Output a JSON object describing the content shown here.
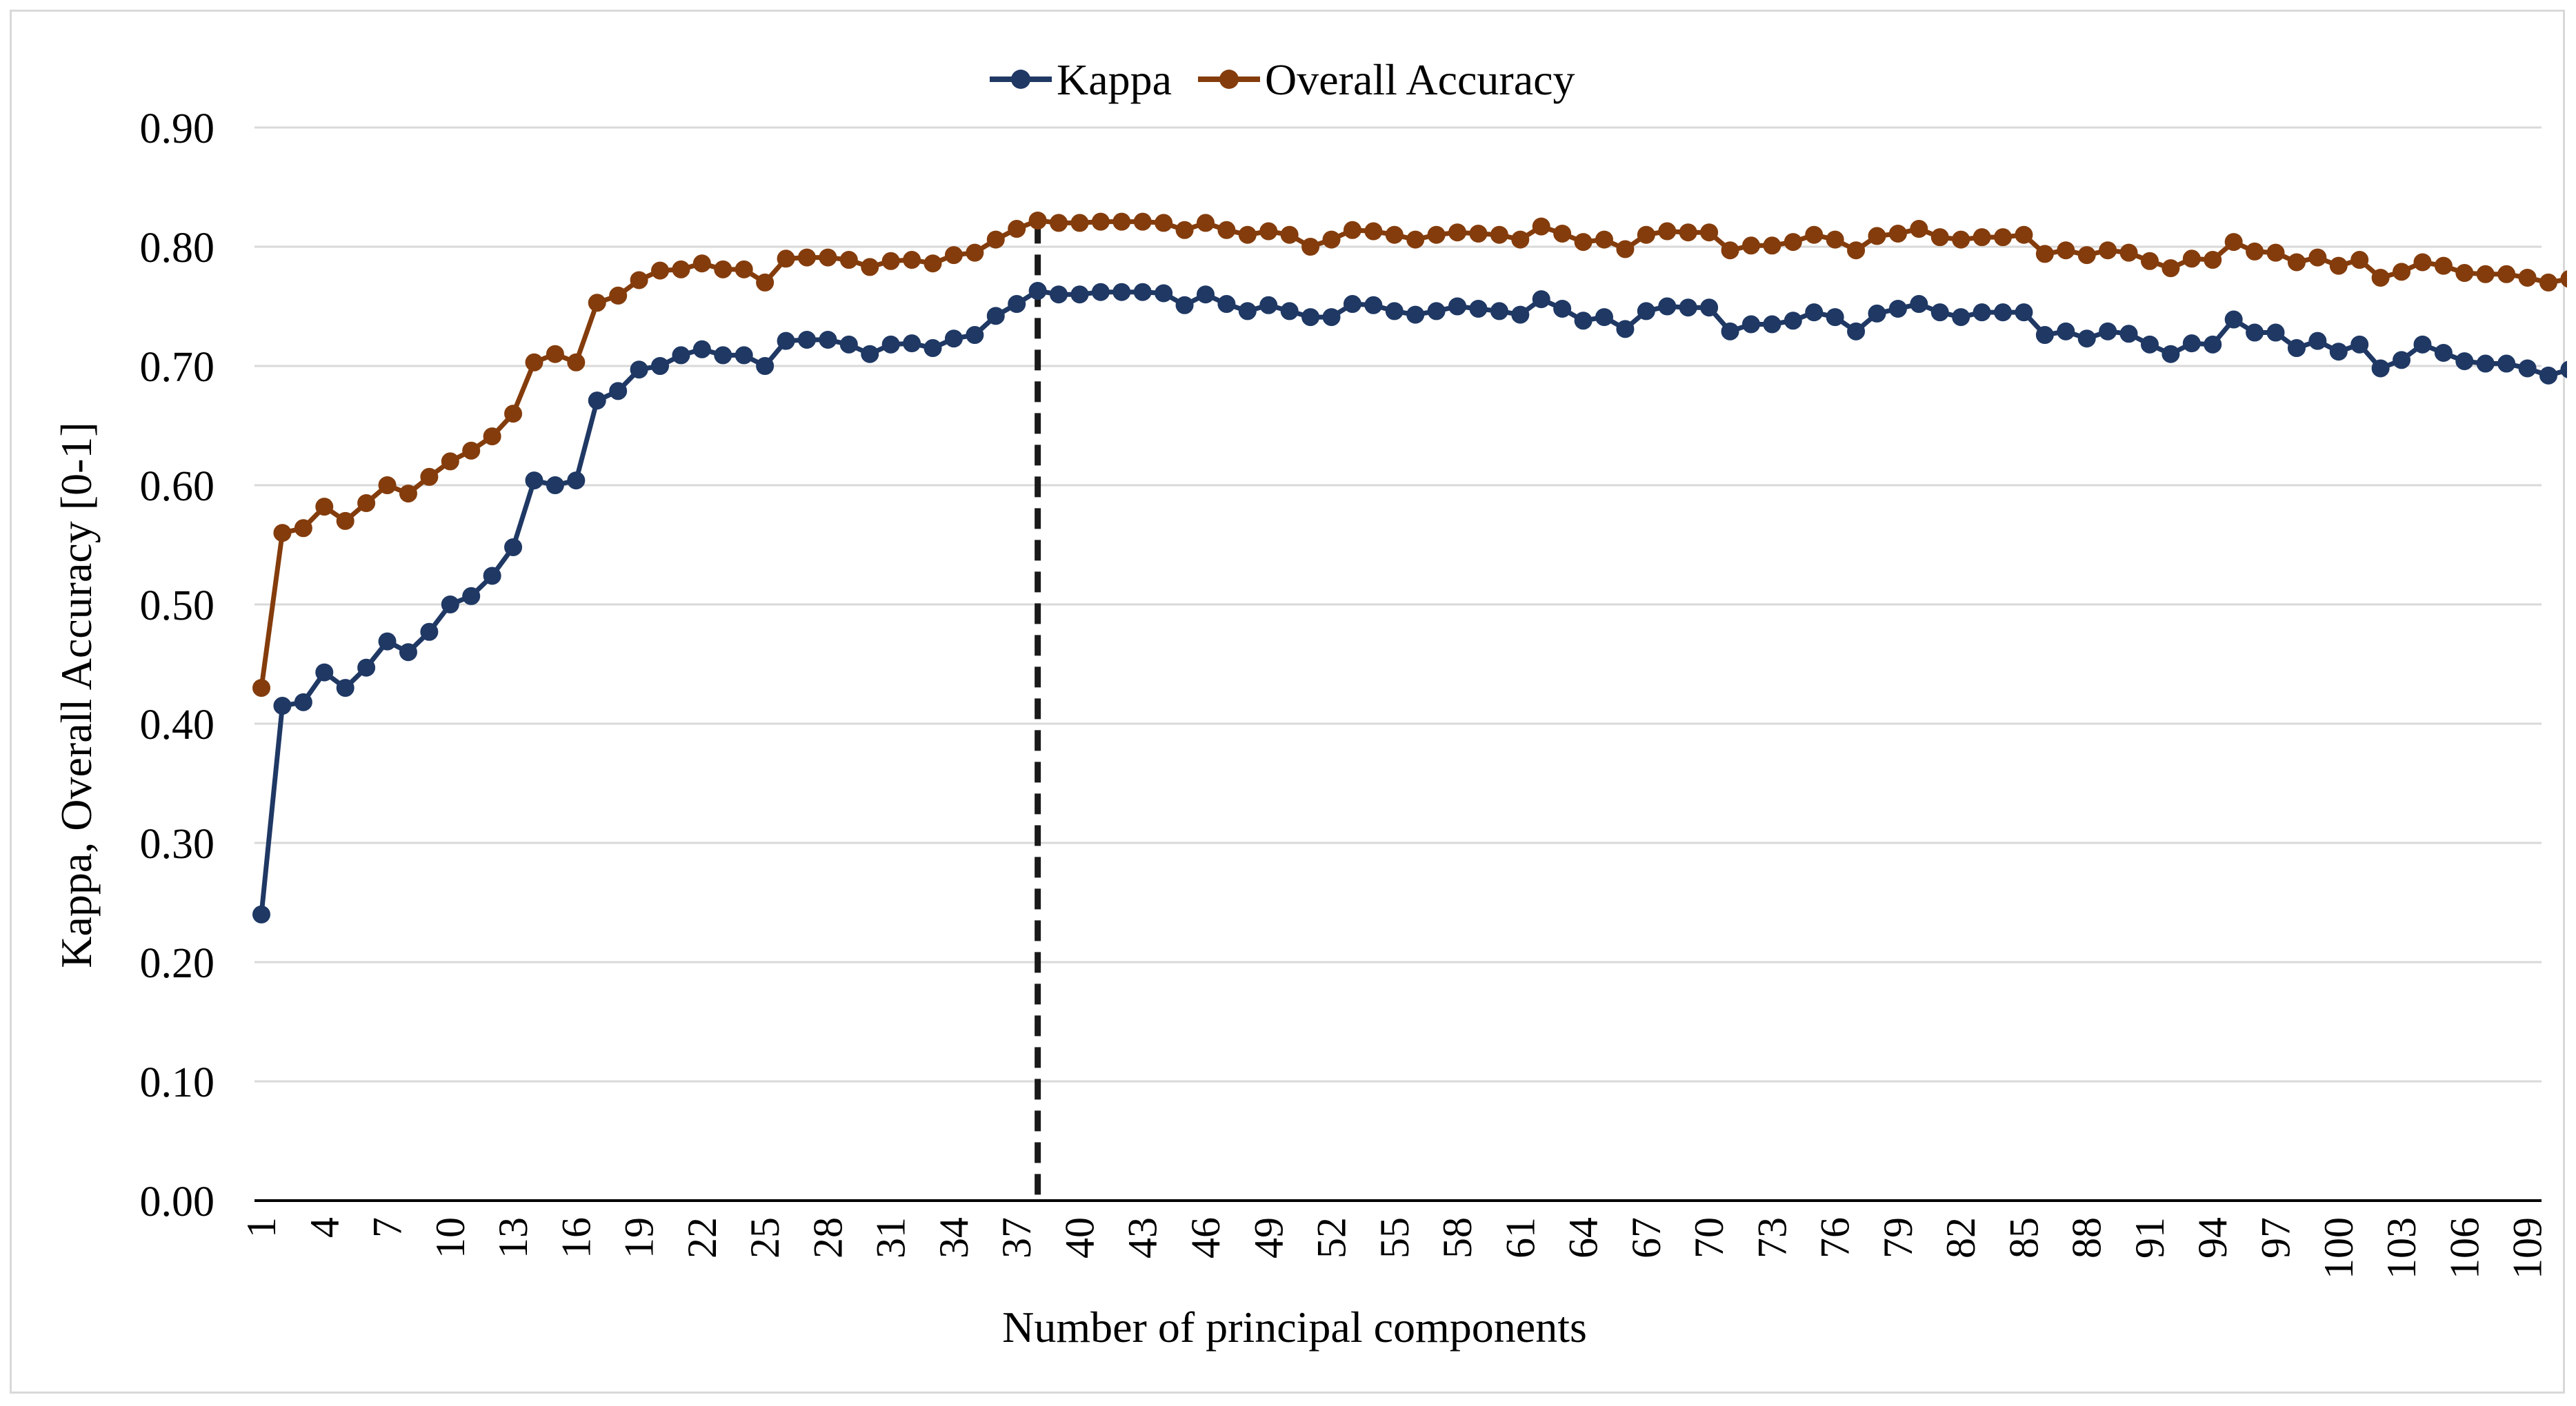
{
  "chart_data": {
    "type": "line",
    "title": "",
    "xlabel": "Number of principal components",
    "ylabel": "Kappa, Overall Accuracy [0-1]",
    "ylim": [
      0,
      0.9
    ],
    "yticks": [
      "0.00",
      "0.10",
      "0.20",
      "0.30",
      "0.40",
      "0.50",
      "0.60",
      "0.70",
      "0.80",
      "0.90"
    ],
    "x_start": 1,
    "x_end": 110,
    "xticks": [
      "1",
      "4",
      "7",
      "10",
      "13",
      "16",
      "19",
      "22",
      "25",
      "28",
      "31",
      "34",
      "37",
      "40",
      "43",
      "46",
      "49",
      "52",
      "55",
      "58",
      "61",
      "64",
      "67",
      "70",
      "73",
      "76",
      "79",
      "82",
      "85",
      "88",
      "91",
      "94",
      "97",
      "100",
      "103",
      "106",
      "109"
    ],
    "legend_position": "top-center",
    "grid": true,
    "reference_line": {
      "x": 38,
      "style": "dashed",
      "color": "#1a1a1a"
    },
    "series": [
      {
        "name": "Kappa",
        "color": "#1f3864",
        "values": [
          0.24,
          0.415,
          0.418,
          0.443,
          0.43,
          0.447,
          0.469,
          0.46,
          0.477,
          0.5,
          0.507,
          0.524,
          0.548,
          0.604,
          0.6,
          0.604,
          0.671,
          0.679,
          0.697,
          0.7,
          0.709,
          0.714,
          0.709,
          0.709,
          0.7,
          0.721,
          0.722,
          0.722,
          0.718,
          0.71,
          0.718,
          0.719,
          0.715,
          0.723,
          0.726,
          0.742,
          0.752,
          0.763,
          0.76,
          0.76,
          0.762,
          0.762,
          0.762,
          0.761,
          0.751,
          0.76,
          0.752,
          0.746,
          0.751,
          0.746,
          0.741,
          0.741,
          0.752,
          0.751,
          0.746,
          0.743,
          0.746,
          0.75,
          0.748,
          0.746,
          0.743,
          0.756,
          0.748,
          0.738,
          0.741,
          0.731,
          0.746,
          0.75,
          0.749,
          0.749,
          0.729,
          0.735,
          0.735,
          0.738,
          0.745,
          0.741,
          0.729,
          0.744,
          0.748,
          0.752,
          0.745,
          0.741,
          0.745,
          0.745,
          0.745,
          0.726,
          0.729,
          0.723,
          0.729,
          0.727,
          0.718,
          0.71,
          0.719,
          0.718,
          0.739,
          0.728,
          0.728,
          0.715,
          0.721,
          0.712,
          0.718,
          0.698,
          0.705,
          0.718,
          0.711,
          0.704,
          0.702,
          0.702,
          0.698,
          0.692,
          0.697
        ]
      },
      {
        "name": "Overall Accuracy",
        "color": "#843c0c",
        "values": [
          0.43,
          0.56,
          0.564,
          0.582,
          0.57,
          0.585,
          0.6,
          0.593,
          0.607,
          0.62,
          0.629,
          0.641,
          0.66,
          0.703,
          0.71,
          0.703,
          0.753,
          0.759,
          0.772,
          0.78,
          0.781,
          0.786,
          0.781,
          0.781,
          0.77,
          0.79,
          0.791,
          0.791,
          0.789,
          0.783,
          0.788,
          0.789,
          0.786,
          0.793,
          0.795,
          0.806,
          0.815,
          0.822,
          0.82,
          0.82,
          0.821,
          0.821,
          0.821,
          0.82,
          0.814,
          0.82,
          0.814,
          0.81,
          0.813,
          0.81,
          0.8,
          0.806,
          0.814,
          0.813,
          0.81,
          0.806,
          0.81,
          0.812,
          0.811,
          0.81,
          0.806,
          0.817,
          0.811,
          0.804,
          0.806,
          0.798,
          0.81,
          0.813,
          0.812,
          0.812,
          0.797,
          0.801,
          0.801,
          0.804,
          0.81,
          0.806,
          0.797,
          0.809,
          0.811,
          0.815,
          0.808,
          0.806,
          0.808,
          0.808,
          0.81,
          0.794,
          0.797,
          0.793,
          0.797,
          0.795,
          0.788,
          0.782,
          0.79,
          0.789,
          0.804,
          0.796,
          0.795,
          0.787,
          0.791,
          0.784,
          0.789,
          0.774,
          0.779,
          0.787,
          0.784,
          0.778,
          0.777,
          0.777,
          0.774,
          0.77,
          0.773
        ]
      }
    ]
  }
}
